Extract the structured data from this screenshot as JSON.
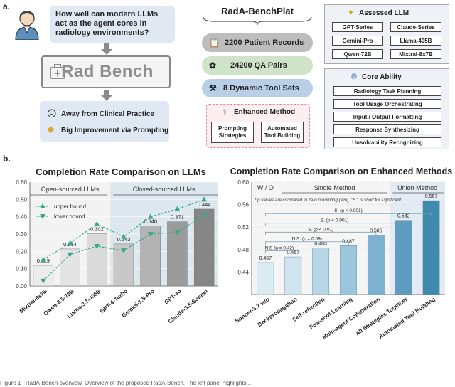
{
  "panel_a": {
    "label": "a.",
    "question": "How well can modern LLMs act as the agent cores in radiology environments?",
    "logo_text": "Rad Bench",
    "outcomes": [
      "Away from Clinical Practice",
      "Big Improvement via Prompting"
    ],
    "platform_title": "RadA-BenchPlat",
    "platform_items": [
      "2200 Patient Records",
      "24200 QA Pairs",
      "8 Dynamic Tool Sets"
    ],
    "enhanced_title": "Enhanced Method",
    "enhanced_items": [
      "Prompting Strategies",
      "Automated Tool Building"
    ],
    "assessed_title": "Assessed LLM",
    "assessed_llms": [
      "GPT-Series",
      "Claude-Series",
      "Gemini-Pro",
      "Llama-405B",
      "Qwen-72B",
      "Mixtral-8x7B"
    ],
    "core_title": "Core Ability",
    "core_items": [
      "Radiology Task Planning",
      "Tool Usage Orchestrating",
      "Input / Output Formatting",
      "Response Synthesizing",
      "Unsolvability Recognizing"
    ],
    "colors": {
      "box_blue": "#dfe8f3",
      "pill_gray": "#bdbdbd",
      "pill_green": "#cfe3c8",
      "pill_blue": "#b9cfe6",
      "pink_bg": "#fdeef0",
      "pink_border": "#e38b95"
    }
  },
  "panel_b": {
    "label": "b.",
    "chart_data": [
      {
        "type": "bar",
        "title": "Completion Rate Comparison on LLMs",
        "categories": [
          "Mixtral-8x7B",
          "Qwen-2.5-72B",
          "Llama-3.1-405B",
          "GPT-4-Turbo",
          "Gemini-1.5-Pro",
          "GPT-4o",
          "Claude-3.5-Sonnet"
        ],
        "values": [
          0.119,
          0.214,
          0.302,
          0.243,
          0.348,
          0.371,
          0.444
        ],
        "value_labels": [
          "0.119",
          "0.214",
          "0.302",
          "0.243",
          "0.348",
          "0.371",
          "0.444"
        ],
        "series": [
          {
            "name": "upper bound",
            "values": [
              0.152,
              0.248,
              0.358,
              0.285,
              0.4,
              0.445,
              0.5
            ]
          },
          {
            "name": "lower bound",
            "values": [
              0.03,
              0.182,
              0.23,
              0.205,
              0.3,
              0.31,
              0.41
            ]
          }
        ],
        "ylim": [
          0,
          0.6
        ],
        "yticks": [
          "0.00",
          "0.10",
          "0.20",
          "0.30",
          "0.40",
          "0.50",
          "0.60"
        ],
        "groups": [
          "Open-sourced LLMs",
          "Closed-sourced LLMs"
        ],
        "legend": "top-left",
        "grid": true,
        "colors": [
          "#ececec",
          "#e4e4e4",
          "#dadada",
          "#c8c8c8",
          "#b3b3b3",
          "#9b9b9b",
          "#868686"
        ],
        "line_color": "#39a88a"
      },
      {
        "type": "bar",
        "title": "Completion Rate Comparison on Enhanced Methods",
        "categories": [
          "Sonnet-3.7 w/o",
          "Backpropagation",
          "Self-reflection",
          "Few-shot Learning",
          "Multi-agent Collaboration",
          "All Strategies Together",
          "Automated Tool Building"
        ],
        "values": [
          0.457,
          0.467,
          0.483,
          0.487,
          0.506,
          0.532,
          0.567
        ],
        "value_labels": [
          "0.457",
          "0.467",
          "0.483",
          "0.487",
          "0.506",
          "0.532",
          "0.567"
        ],
        "ylim": [
          0.4,
          0.6
        ],
        "yticks": [
          "0.44",
          "0.48",
          "0.52",
          "0.56",
          "0.60"
        ],
        "groups": [
          "W / O",
          "Single Method",
          "Union Method"
        ],
        "note": "* p values are compared to zero prompting (w/o), \"S.\" is short for significant",
        "significance": [
          "N.S (p = 0.42)",
          "N.S. (p = 0.09)",
          "S. (p < 0.01)",
          "S. (p < 0.001)",
          "S. (p < 0.001)"
        ],
        "grid": true,
        "colors": [
          "#dcecf3",
          "#cfe4ee",
          "#b7d6e6",
          "#9cc6dc",
          "#7cb1cf",
          "#5d9cc0",
          "#3f88ae"
        ]
      }
    ]
  },
  "caption": "Figure 1 | RadA-Bench overview. Overview of the proposed RadA-Bench. The left panel highlights..."
}
